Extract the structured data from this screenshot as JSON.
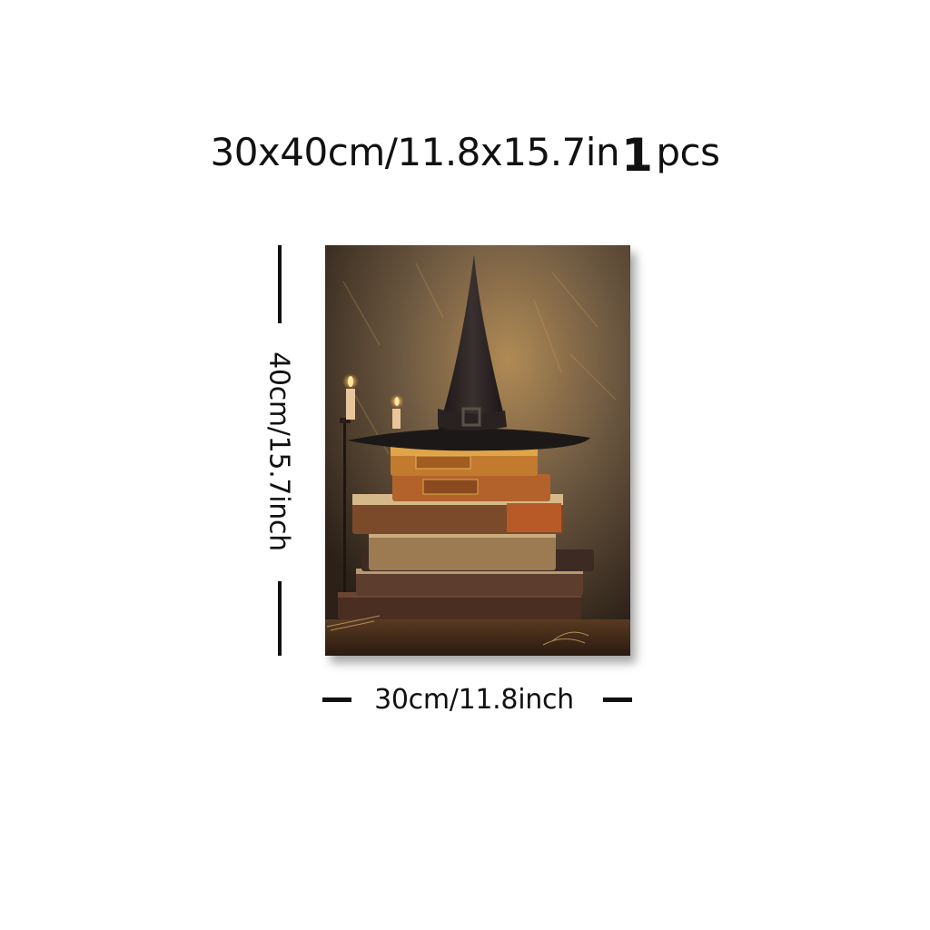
{
  "title": {
    "size_text": "30x40cm/11.8x15.7in",
    "quantity_number": "1",
    "quantity_unit": "pcs"
  },
  "dimensions": {
    "height_label": "40cm/15.7inch",
    "width_label": "30cm/11.8inch"
  },
  "artwork": {
    "background_color": "#4a3a2a",
    "accent_color": "#c98a3a"
  }
}
